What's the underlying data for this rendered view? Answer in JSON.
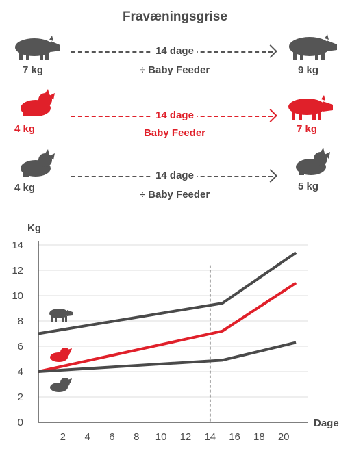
{
  "header": {
    "title": "Fravæningsgrise"
  },
  "rows": [
    {
      "start_weight": "7 kg",
      "days": "14 dage",
      "feeder": "÷ Baby Feeder",
      "end_weight": "9 kg"
    },
    {
      "start_weight": "4 kg",
      "days": "14 dage",
      "feeder": "Baby Feeder",
      "end_weight": "7 kg"
    },
    {
      "start_weight": "4 kg",
      "days": "14 dage",
      "feeder": "÷ Baby Feeder",
      "end_weight": "5 kg"
    }
  ],
  "colors": {
    "grey": "#4a4a4a",
    "red": "#e0202a"
  },
  "chart_data": {
    "type": "line",
    "ylabel": "Kg",
    "xlabel": "Dage",
    "xlim": [
      0,
      22
    ],
    "ylim": [
      0,
      14
    ],
    "xticks": [
      2,
      4,
      6,
      8,
      10,
      12,
      14,
      16,
      18,
      20
    ],
    "yticks": [
      0,
      2,
      4,
      6,
      8,
      10,
      12,
      14
    ],
    "vline_x": 14,
    "series": [
      {
        "color": "#4a4a4a",
        "points": [
          [
            0,
            7.0
          ],
          [
            15,
            9.4
          ],
          [
            21,
            13.4
          ]
        ]
      },
      {
        "color": "#e0202a",
        "points": [
          [
            0,
            4.0
          ],
          [
            15,
            7.2
          ],
          [
            21,
            11.0
          ]
        ]
      },
      {
        "color": "#4a4a4a",
        "points": [
          [
            0,
            4.0
          ],
          [
            15,
            4.9
          ],
          [
            21,
            6.3
          ]
        ]
      }
    ]
  }
}
